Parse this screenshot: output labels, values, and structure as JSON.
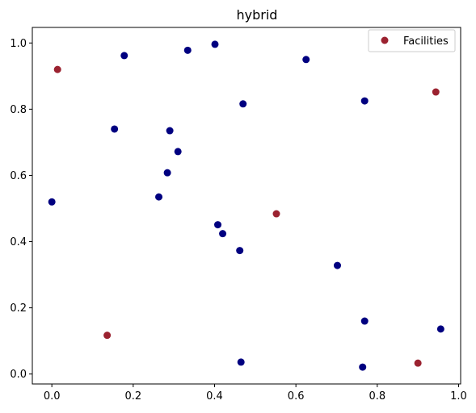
{
  "chart_data": {
    "type": "scatter",
    "title": "hybrid",
    "xlabel": "",
    "ylabel": "",
    "xlim": [
      -0.048,
      1.005
    ],
    "ylim": [
      -0.03,
      1.047
    ],
    "xticks": [
      "0.0",
      "0.2",
      "0.4",
      "0.6",
      "0.8",
      "1.0"
    ],
    "yticks": [
      "0.0",
      "0.2",
      "0.4",
      "0.6",
      "0.8",
      "1.0"
    ],
    "grid": false,
    "legend_position": "top-right",
    "series": [
      {
        "name": "",
        "color": "#000080",
        "points": [
          {
            "x": 0.178,
            "y": 0.962
          },
          {
            "x": 0.334,
            "y": 0.978
          },
          {
            "x": 0.401,
            "y": 0.996
          },
          {
            "x": 0.625,
            "y": 0.95
          },
          {
            "x": 0.47,
            "y": 0.816
          },
          {
            "x": 0.769,
            "y": 0.825
          },
          {
            "x": 0.154,
            "y": 0.74
          },
          {
            "x": 0.29,
            "y": 0.735
          },
          {
            "x": 0.31,
            "y": 0.672
          },
          {
            "x": 0.284,
            "y": 0.608
          },
          {
            "x": 0.263,
            "y": 0.535
          },
          {
            "x": 0.0,
            "y": 0.52
          },
          {
            "x": 0.408,
            "y": 0.451
          },
          {
            "x": 0.42,
            "y": 0.424
          },
          {
            "x": 0.462,
            "y": 0.373
          },
          {
            "x": 0.702,
            "y": 0.328
          },
          {
            "x": 0.769,
            "y": 0.16
          },
          {
            "x": 0.956,
            "y": 0.136
          },
          {
            "x": 0.465,
            "y": 0.036
          },
          {
            "x": 0.764,
            "y": 0.021
          }
        ]
      },
      {
        "name": "Facilities",
        "color": "#9b2230",
        "points": [
          {
            "x": 0.014,
            "y": 0.92
          },
          {
            "x": 0.944,
            "y": 0.852
          },
          {
            "x": 0.552,
            "y": 0.484
          },
          {
            "x": 0.136,
            "y": 0.117
          },
          {
            "x": 0.9,
            "y": 0.033
          }
        ]
      }
    ]
  }
}
